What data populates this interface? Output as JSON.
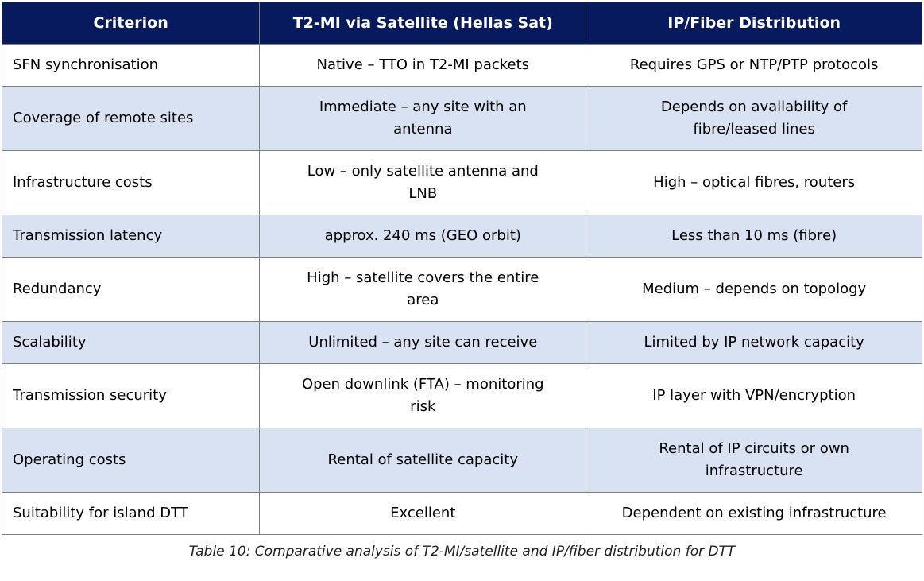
{
  "table": {
    "columns": [
      {
        "label": "Criterion"
      },
      {
        "label": "T2-MI via Satellite (Hellas Sat)"
      },
      {
        "label": "IP/Fiber Distribution"
      }
    ],
    "rows": [
      {
        "criterion": "SFN synchronisation",
        "satellite": "Native – TTO in T2-MI packets",
        "ip_fiber": "Requires GPS or NTP/PTP protocols"
      },
      {
        "criterion": "Coverage of remote sites",
        "satellite": "Immediate – any site with an antenna",
        "ip_fiber": "Depends on availability of fibre/leased lines"
      },
      {
        "criterion": "Infrastructure costs",
        "satellite": "Low – only satellite antenna and LNB",
        "ip_fiber": "High – optical fibres, routers"
      },
      {
        "criterion": "Transmission latency",
        "satellite": "approx. 240 ms (GEO orbit)",
        "ip_fiber": "Less than 10 ms (fibre)"
      },
      {
        "criterion": "Redundancy",
        "satellite": "High – satellite covers the entire area",
        "ip_fiber": "Medium – depends on topology"
      },
      {
        "criterion": "Scalability",
        "satellite": "Unlimited – any site can receive",
        "ip_fiber": "Limited by IP network capacity"
      },
      {
        "criterion": "Transmission security",
        "satellite": "Open downlink (FTA) – monitoring risk",
        "ip_fiber": "IP layer with VPN/encryption"
      },
      {
        "criterion": "Operating costs",
        "satellite": "Rental of satellite capacity",
        "ip_fiber": "Rental of IP circuits or own infrastructure"
      },
      {
        "criterion": "Suitability for island DTT",
        "satellite": "Excellent",
        "ip_fiber": "Dependent on existing infrastructure"
      }
    ],
    "caption": "Table 10: Comparative analysis of T2-MI/satellite and IP/fiber distribution for DTT"
  },
  "colors": {
    "header_bg": "#081a5e",
    "header_text": "#ffffff",
    "row_alt_bg": "#d9e2f3",
    "border": "#7f7f7f",
    "body_text": "#000000",
    "caption_text": "#1f1f23"
  }
}
